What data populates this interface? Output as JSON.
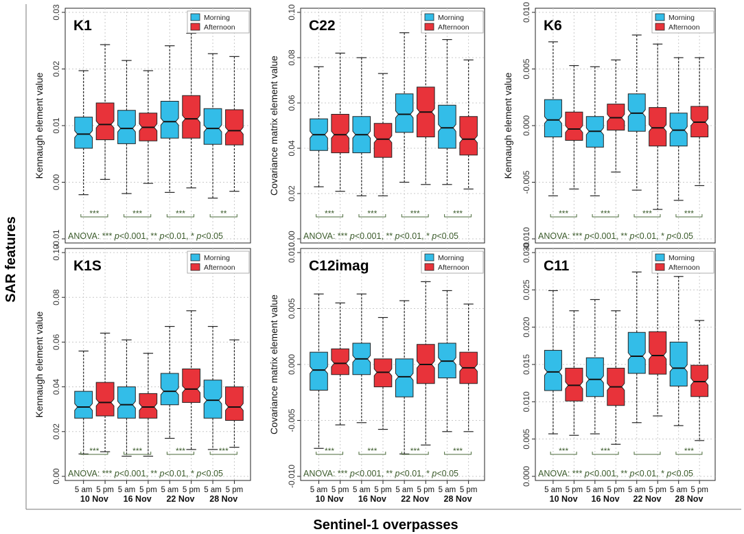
{
  "figure": {
    "y_label": "SAR features",
    "x_label": "Sentinel-1 overpasses",
    "colors": {
      "morning": "#33bde8",
      "afternoon": "#e8333a",
      "anova_text": "#3a5a2a",
      "sig_bracket": "#4a6a3a",
      "grid": "#c8c8c8",
      "axis": "#222222"
    }
  },
  "chart_data": [
    {
      "type": "boxplot",
      "panel_label": "K1",
      "ylabel": "Kennaugh element value",
      "ylim": [
        -0.01,
        0.03
      ],
      "yticks": [
        -0.01,
        0.0,
        0.01,
        0.02,
        0.03
      ],
      "ytick_labels": [
        "-0.01",
        "0.00",
        "0.01",
        "0.02",
        "0.03"
      ],
      "legend": [
        "Morning",
        "Afternoon"
      ],
      "x_tick_labels": [
        "5 am",
        "5 pm",
        "5 am",
        "5 pm",
        "5 am",
        "5 pm",
        "5 am",
        "5 pm"
      ],
      "dates": [
        "10 Nov",
        "16 Nov",
        "22 Nov",
        "28 Nov"
      ],
      "boxes": [
        {
          "series": "Morning",
          "date": "10 Nov",
          "min": -0.0022,
          "q1": 0.006,
          "median": 0.0085,
          "q3": 0.0115,
          "max": 0.0197
        },
        {
          "series": "Afternoon",
          "date": "10 Nov",
          "min": 0.0005,
          "q1": 0.0075,
          "median": 0.0102,
          "q3": 0.014,
          "max": 0.0243
        },
        {
          "series": "Morning",
          "date": "16 Nov",
          "min": -0.002,
          "q1": 0.0068,
          "median": 0.0095,
          "q3": 0.0127,
          "max": 0.0215
        },
        {
          "series": "Afternoon",
          "date": "16 Nov",
          "min": -0.0002,
          "q1": 0.0073,
          "median": 0.0097,
          "q3": 0.0122,
          "max": 0.0197
        },
        {
          "series": "Morning",
          "date": "22 Nov",
          "min": -0.0018,
          "q1": 0.0078,
          "median": 0.0107,
          "q3": 0.0143,
          "max": 0.0241
        },
        {
          "series": "Afternoon",
          "date": "22 Nov",
          "min": -0.001,
          "q1": 0.0078,
          "median": 0.0112,
          "q3": 0.0153,
          "max": 0.0263
        },
        {
          "series": "Morning",
          "date": "28 Nov",
          "min": -0.0028,
          "q1": 0.0067,
          "median": 0.0095,
          "q3": 0.013,
          "max": 0.0227
        },
        {
          "series": "Afternoon",
          "date": "28 Nov",
          "min": -0.0016,
          "q1": 0.0066,
          "median": 0.0091,
          "q3": 0.0128,
          "max": 0.0222
        }
      ],
      "significance": [
        "***",
        "***",
        "***",
        "**"
      ],
      "anova_prefix": "ANOVA: ",
      "anova_parts": [
        "*** ",
        "p",
        "<0.001, ** ",
        "p",
        "<0.01, * ",
        "p",
        "<0.05"
      ]
    },
    {
      "type": "boxplot",
      "panel_label": "C22",
      "ylabel": "Covariance matrix element value",
      "ylim": [
        0.0,
        0.1
      ],
      "yticks": [
        0.0,
        0.02,
        0.04,
        0.06,
        0.08,
        0.1
      ],
      "ytick_labels": [
        "0.00",
        "0.02",
        "0.04",
        "0.06",
        "0.08",
        "0.10"
      ],
      "legend": [
        "Morning",
        "Afternoon"
      ],
      "x_tick_labels": [
        "5 am",
        "5 pm",
        "5 am",
        "5 pm",
        "5 am",
        "5 pm",
        "5 am",
        "5 pm"
      ],
      "dates": [
        "10 Nov",
        "16 Nov",
        "22 Nov",
        "28 Nov"
      ],
      "boxes": [
        {
          "series": "Morning",
          "date": "10 Nov",
          "min": 0.023,
          "q1": 0.039,
          "median": 0.046,
          "q3": 0.053,
          "max": 0.076
        },
        {
          "series": "Afternoon",
          "date": "10 Nov",
          "min": 0.021,
          "q1": 0.038,
          "median": 0.046,
          "q3": 0.055,
          "max": 0.082
        },
        {
          "series": "Morning",
          "date": "16 Nov",
          "min": 0.019,
          "q1": 0.038,
          "median": 0.046,
          "q3": 0.054,
          "max": 0.08
        },
        {
          "series": "Afternoon",
          "date": "16 Nov",
          "min": 0.019,
          "q1": 0.036,
          "median": 0.044,
          "q3": 0.051,
          "max": 0.073
        },
        {
          "series": "Morning",
          "date": "22 Nov",
          "min": 0.025,
          "q1": 0.047,
          "median": 0.055,
          "q3": 0.064,
          "max": 0.091
        },
        {
          "series": "Afternoon",
          "date": "22 Nov",
          "min": 0.024,
          "q1": 0.045,
          "median": 0.056,
          "q3": 0.067,
          "max": 0.099
        },
        {
          "series": "Morning",
          "date": "28 Nov",
          "min": 0.024,
          "q1": 0.04,
          "median": 0.049,
          "q3": 0.059,
          "max": 0.088
        },
        {
          "series": "Afternoon",
          "date": "28 Nov",
          "min": 0.022,
          "q1": 0.037,
          "median": 0.044,
          "q3": 0.054,
          "max": 0.079
        }
      ],
      "significance": [
        "***",
        "***",
        "***",
        "***"
      ],
      "anova_prefix": "ANOVA: ",
      "anova_parts": [
        "*** ",
        "p",
        "<0.001, ** ",
        "p",
        "<0.01, * ",
        "p",
        "<0.05"
      ]
    },
    {
      "type": "boxplot",
      "panel_label": "K6",
      "ylabel": "Kennaugh element value",
      "ylim": [
        -0.01,
        0.01
      ],
      "yticks": [
        -0.01,
        -0.005,
        0.0,
        0.005,
        0.01
      ],
      "ytick_labels": [
        "-0.010",
        "-0.005",
        "0.000",
        "0.005",
        "0.010"
      ],
      "legend": [
        "Morning",
        "Afternoon"
      ],
      "x_tick_labels": [
        "5 am",
        "5 pm",
        "5 am",
        "5 pm",
        "5 am",
        "5 pm",
        "5 am",
        "5 pm"
      ],
      "dates": [
        "10 Nov",
        "16 Nov",
        "22 Nov",
        "28 Nov"
      ],
      "boxes": [
        {
          "series": "Morning",
          "date": "10 Nov",
          "min": -0.0062,
          "q1": -0.001,
          "median": 0.0005,
          "q3": 0.0023,
          "max": 0.0074
        },
        {
          "series": "Afternoon",
          "date": "10 Nov",
          "min": -0.0056,
          "q1": -0.0013,
          "median": -0.0003,
          "q3": 0.0012,
          "max": 0.0053
        },
        {
          "series": "Morning",
          "date": "16 Nov",
          "min": -0.0062,
          "q1": -0.0019,
          "median": -0.0005,
          "q3": 0.0008,
          "max": 0.0052
        },
        {
          "series": "Afternoon",
          "date": "16 Nov",
          "min": -0.0041,
          "q1": -0.0004,
          "median": 0.0007,
          "q3": 0.0019,
          "max": 0.0058
        },
        {
          "series": "Morning",
          "date": "22 Nov",
          "min": -0.0057,
          "q1": -0.0005,
          "median": 0.0011,
          "q3": 0.0028,
          "max": 0.008
        },
        {
          "series": "Afternoon",
          "date": "22 Nov",
          "min": -0.0074,
          "q1": -0.0018,
          "median": -0.0002,
          "q3": 0.0016,
          "max": 0.0072
        },
        {
          "series": "Morning",
          "date": "28 Nov",
          "min": -0.0066,
          "q1": -0.0018,
          "median": -0.0004,
          "q3": 0.0011,
          "max": 0.006
        },
        {
          "series": "Afternoon",
          "date": "28 Nov",
          "min": -0.0053,
          "q1": -0.001,
          "median": 0.0003,
          "q3": 0.0017,
          "max": 0.006
        }
      ],
      "significance": [
        "***",
        "***",
        "***",
        "***"
      ],
      "anova_prefix": "ANOVA: ",
      "anova_parts": [
        "*** ",
        "p",
        "<0.001, ** ",
        "p",
        "<0.01, * ",
        "p",
        "<0.05"
      ]
    },
    {
      "type": "boxplot",
      "panel_label": "K1S",
      "ylabel": "Kennaugh element value",
      "ylim": [
        0.0,
        0.1
      ],
      "yticks": [
        0.0,
        0.02,
        0.04,
        0.06,
        0.08,
        0.1
      ],
      "ytick_labels": [
        "0.00",
        "0.02",
        "0.04",
        "0.06",
        "0.08",
        "0.10"
      ],
      "legend": [
        "Morning",
        "Afternoon"
      ],
      "x_tick_labels": [
        "5 am",
        "5 pm",
        "5 am",
        "5 pm",
        "5 am",
        "5 pm",
        "5 am",
        "5 pm"
      ],
      "dates": [
        "10 Nov",
        "16 Nov",
        "22 Nov",
        "28 Nov"
      ],
      "boxes": [
        {
          "series": "Morning",
          "date": "10 Nov",
          "min": 0.01,
          "q1": 0.026,
          "median": 0.031,
          "q3": 0.038,
          "max": 0.056
        },
        {
          "series": "Afternoon",
          "date": "10 Nov",
          "min": 0.011,
          "q1": 0.027,
          "median": 0.033,
          "q3": 0.042,
          "max": 0.064
        },
        {
          "series": "Morning",
          "date": "16 Nov",
          "min": 0.009,
          "q1": 0.026,
          "median": 0.032,
          "q3": 0.04,
          "max": 0.061
        },
        {
          "series": "Afternoon",
          "date": "16 Nov",
          "min": 0.009,
          "q1": 0.026,
          "median": 0.031,
          "q3": 0.037,
          "max": 0.055
        },
        {
          "series": "Morning",
          "date": "22 Nov",
          "min": 0.017,
          "q1": 0.032,
          "median": 0.038,
          "q3": 0.046,
          "max": 0.067
        },
        {
          "series": "Afternoon",
          "date": "22 Nov",
          "min": 0.012,
          "q1": 0.033,
          "median": 0.039,
          "q3": 0.048,
          "max": 0.074
        },
        {
          "series": "Morning",
          "date": "28 Nov",
          "min": 0.012,
          "q1": 0.026,
          "median": 0.034,
          "q3": 0.043,
          "max": 0.067
        },
        {
          "series": "Afternoon",
          "date": "28 Nov",
          "min": 0.013,
          "q1": 0.025,
          "median": 0.031,
          "q3": 0.04,
          "max": 0.061
        }
      ],
      "significance": [
        "***",
        "***",
        "***",
        "***"
      ],
      "anova_prefix": "ANOVA: ",
      "anova_parts": [
        "*** ",
        "p",
        "<0.001, ** ",
        "p",
        "<0.01, * ",
        "p",
        "<0.05"
      ]
    },
    {
      "type": "boxplot",
      "panel_label": "C12imag",
      "ylabel": "Covariance matrix element value",
      "ylim": [
        -0.01,
        0.01
      ],
      "yticks": [
        -0.01,
        -0.005,
        0.0,
        0.005,
        0.01
      ],
      "ytick_labels": [
        "-0.010",
        "-0.005",
        "0.000",
        "0.005",
        "0.010"
      ],
      "legend": [
        "Morning",
        "Afternoon"
      ],
      "x_tick_labels": [
        "5 am",
        "5 pm",
        "5 am",
        "5 pm",
        "5 am",
        "5 pm",
        "5 am",
        "5 pm"
      ],
      "dates": [
        "10 Nov",
        "16 Nov",
        "22 Nov",
        "28 Nov"
      ],
      "boxes": [
        {
          "series": "Morning",
          "date": "10 Nov",
          "min": -0.0075,
          "q1": -0.0023,
          "median": -0.0005,
          "q3": 0.0011,
          "max": 0.0063
        },
        {
          "series": "Afternoon",
          "date": "10 Nov",
          "min": -0.0054,
          "q1": -0.0009,
          "median": 0.0001,
          "q3": 0.0014,
          "max": 0.0055
        },
        {
          "series": "Morning",
          "date": "16 Nov",
          "min": -0.0052,
          "q1": -0.0009,
          "median": 0.0005,
          "q3": 0.0019,
          "max": 0.0063
        },
        {
          "series": "Afternoon",
          "date": "16 Nov",
          "min": -0.0058,
          "q1": -0.002,
          "median": -0.0007,
          "q3": 0.0005,
          "max": 0.0042
        },
        {
          "series": "Morning",
          "date": "22 Nov",
          "min": -0.008,
          "q1": -0.0029,
          "median": -0.0011,
          "q3": 0.0005,
          "max": 0.0057
        },
        {
          "series": "Afternoon",
          "date": "22 Nov",
          "min": -0.0072,
          "q1": -0.0017,
          "median": 0.0,
          "q3": 0.0018,
          "max": 0.0074
        },
        {
          "series": "Morning",
          "date": "28 Nov",
          "min": -0.006,
          "q1": -0.0012,
          "median": 0.0003,
          "q3": 0.0019,
          "max": 0.0066
        },
        {
          "series": "Afternoon",
          "date": "28 Nov",
          "min": -0.006,
          "q1": -0.0017,
          "median": -0.0003,
          "q3": 0.0011,
          "max": 0.0054
        }
      ],
      "significance": [
        "***",
        "***",
        "***",
        "***"
      ],
      "anova_prefix": "ANOVA: ",
      "anova_parts": [
        "*** ",
        "p",
        "<0.001, ** ",
        "p",
        "<0.01, * ",
        "p",
        "<0.05"
      ]
    },
    {
      "type": "boxplot",
      "panel_label": "C11",
      "ylabel": "",
      "ylim": [
        0.0,
        0.03
      ],
      "yticks": [
        0.0,
        0.005,
        0.01,
        0.015,
        0.02,
        0.025,
        0.03
      ],
      "ytick_labels": [
        "0.000",
        "0.005",
        "0.010",
        "0.015",
        "0.020",
        "0.025",
        "0.030"
      ],
      "legend": [
        "Morning",
        "Afternoon"
      ],
      "x_tick_labels": [
        "5 am",
        "5 pm",
        "5 am",
        "5 pm",
        "5 am",
        "5 pm",
        "5 am",
        "5 pm"
      ],
      "dates": [
        "10 Nov",
        "16 Nov",
        "22 Nov",
        "28 Nov"
      ],
      "boxes": [
        {
          "series": "Morning",
          "date": "10 Nov",
          "min": 0.0057,
          "q1": 0.0115,
          "median": 0.014,
          "q3": 0.0169,
          "max": 0.0249
        },
        {
          "series": "Afternoon",
          "date": "10 Nov",
          "min": 0.0055,
          "q1": 0.0101,
          "median": 0.0122,
          "q3": 0.0145,
          "max": 0.0222
        },
        {
          "series": "Morning",
          "date": "16 Nov",
          "min": 0.0057,
          "q1": 0.0107,
          "median": 0.013,
          "q3": 0.0159,
          "max": 0.0237
        },
        {
          "series": "Afternoon",
          "date": "16 Nov",
          "min": 0.0043,
          "q1": 0.0095,
          "median": 0.012,
          "q3": 0.0145,
          "max": 0.0222
        },
        {
          "series": "Morning",
          "date": "22 Nov",
          "min": 0.0072,
          "q1": 0.0138,
          "median": 0.0161,
          "q3": 0.0193,
          "max": 0.0274
        },
        {
          "series": "Afternoon",
          "date": "22 Nov",
          "min": 0.0081,
          "q1": 0.0137,
          "median": 0.0162,
          "q3": 0.0194,
          "max": 0.0278
        },
        {
          "series": "Morning",
          "date": "28 Nov",
          "min": 0.0068,
          "q1": 0.0121,
          "median": 0.0145,
          "q3": 0.018,
          "max": 0.0268
        },
        {
          "series": "Afternoon",
          "date": "28 Nov",
          "min": 0.0048,
          "q1": 0.0107,
          "median": 0.0127,
          "q3": 0.0149,
          "max": 0.0209
        }
      ],
      "significance": [
        "***",
        "***",
        "",
        "***"
      ],
      "anova_prefix": "ANOVA: ",
      "anova_parts": [
        "*** ",
        "p",
        "<0.001, ** ",
        "p",
        "<0.01, * ",
        "p",
        "<0.05"
      ]
    }
  ]
}
